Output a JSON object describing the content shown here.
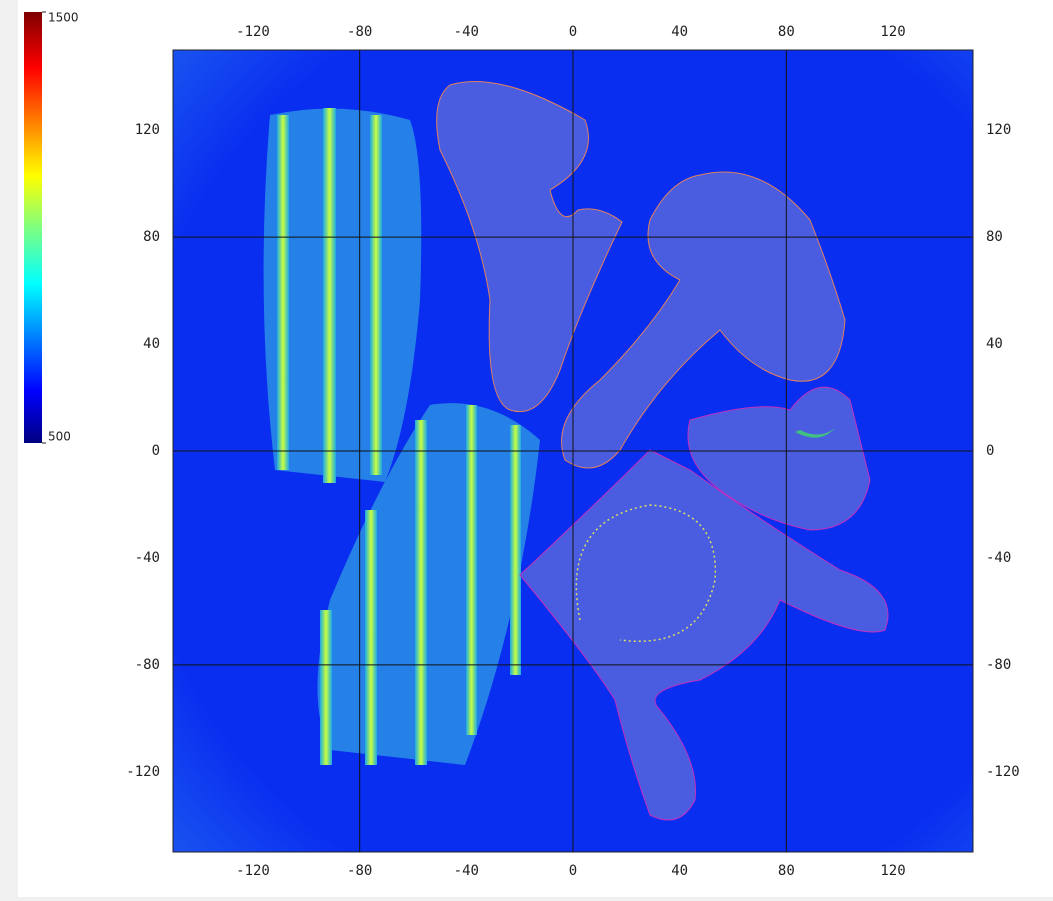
{
  "chart_data": {
    "type": "image",
    "xlim": [
      -150,
      150
    ],
    "ylim": [
      -150,
      150
    ],
    "xticks": [
      -120,
      -80,
      -40,
      0,
      40,
      80,
      120
    ],
    "yticks": [
      -120,
      -80,
      -40,
      0,
      40,
      80,
      120
    ],
    "xgrid": [
      -80,
      0,
      80
    ],
    "ygrid": [
      -80,
      0,
      80
    ],
    "colorbar": {
      "clim": [
        500,
        1500
      ],
      "cticks": [
        500,
        1500
      ],
      "colormap": "jet"
    }
  }
}
